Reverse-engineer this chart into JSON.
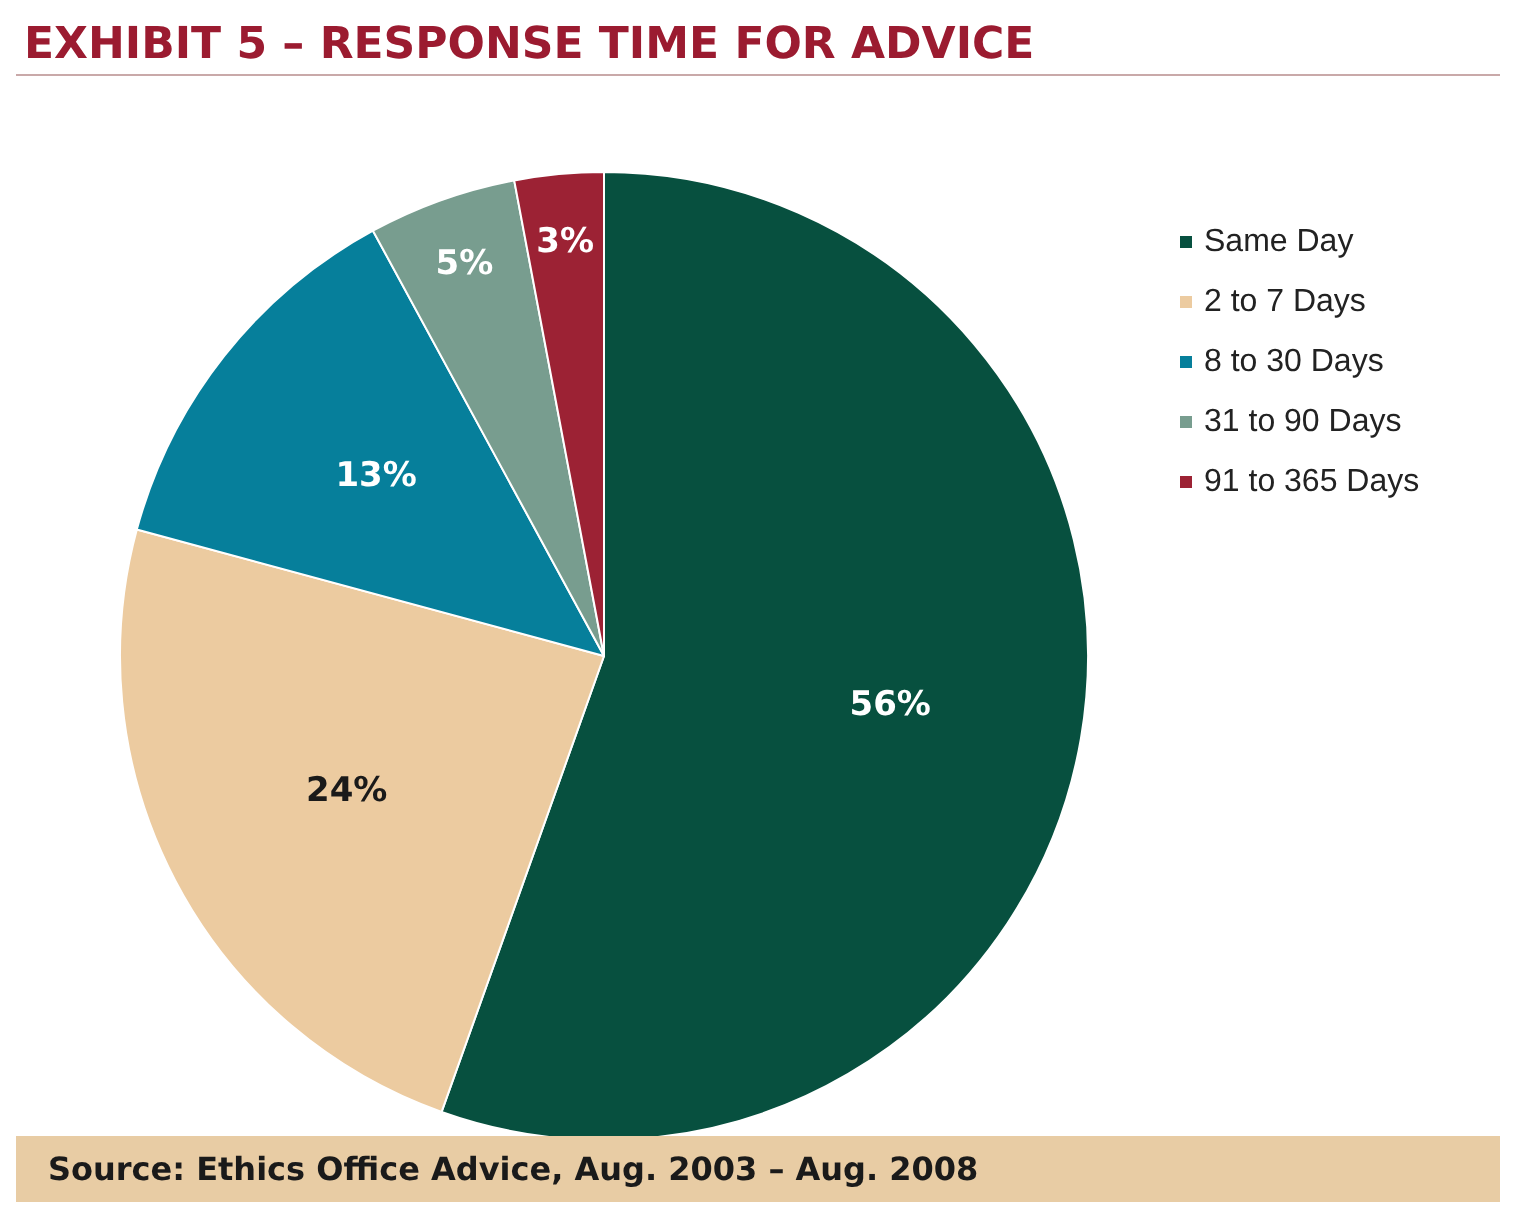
{
  "chart_data": {
    "type": "pie",
    "title": "EXHIBIT 5 – RESPONSE TIME FOR ADVICE",
    "categories": [
      "Same Day",
      "2 to 7 Days",
      "8 to 30 Days",
      "31 to 90 Days",
      "91 to 365 Days"
    ],
    "values": [
      56,
      24,
      13,
      5,
      3
    ],
    "value_labels": [
      "56%",
      "24%",
      "13%",
      "5%",
      "3%"
    ],
    "colors": [
      "#07503f",
      "#eccba0",
      "#067f9b",
      "#789d8f",
      "#9c2234"
    ],
    "legend": "top right",
    "annotations": [
      "Source: Ethics Office Advice, Aug. 2003 – Aug. 2008"
    ]
  }
}
